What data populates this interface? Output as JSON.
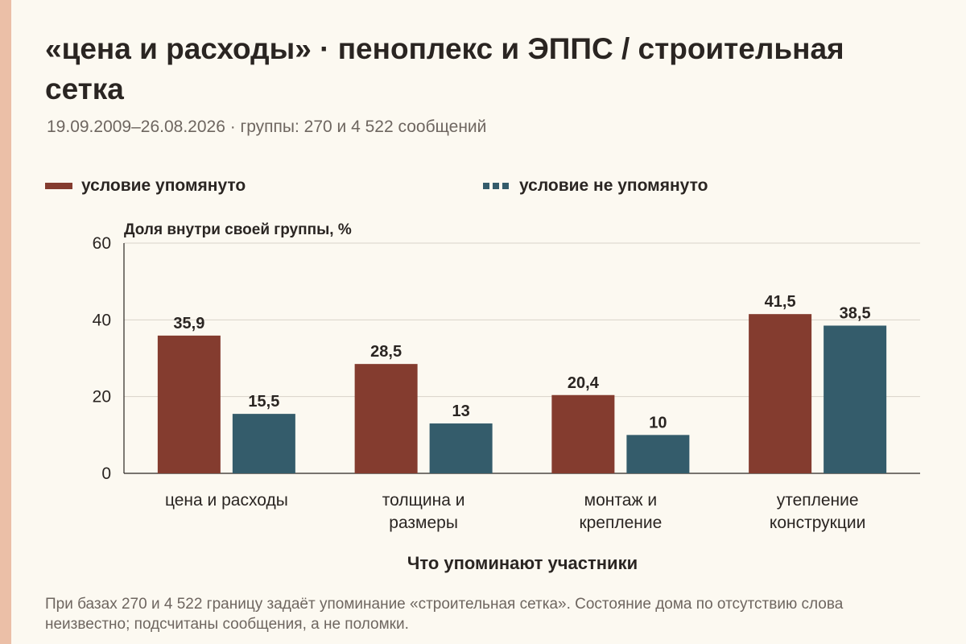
{
  "header": {
    "title": "«цена и расходы» · пеноплекс и ЭППС / строительная сетка",
    "subtitle": "19.09.2009–26.08.2026 · группы: 270 и 4 522 сообщений"
  },
  "legend": {
    "series_a": "условие упомянуто",
    "series_b": "условие не упомянуто"
  },
  "chart_data": {
    "type": "bar",
    "ylabel": "Доля внутри своей группы, %",
    "xlabel": "Что упоминают участники",
    "ylim": [
      0,
      60
    ],
    "yticks": [
      0,
      20,
      40,
      60
    ],
    "grid": true,
    "legend_position": "top",
    "categories": [
      [
        "цена и расходы"
      ],
      [
        "толщина и",
        "размеры"
      ],
      [
        "монтаж и",
        "крепление"
      ],
      [
        "утепление",
        "конструкции"
      ]
    ],
    "series": [
      {
        "name": "условие упомянуто",
        "color": "#843c2f",
        "values": [
          35.9,
          28.5,
          20.4,
          41.5
        ],
        "labels": [
          "35,9",
          "28,5",
          "20,4",
          "41,5"
        ]
      },
      {
        "name": "условие не упомянуто",
        "color": "#345c6b",
        "values": [
          15.5,
          13,
          10,
          38.5
        ],
        "labels": [
          "15,5",
          "13",
          "10",
          "38,5"
        ]
      }
    ]
  },
  "footnote": "При базах 270 и 4 522 границу задаёт упоминание «строительная сетка». Состояние дома по отсутствию слова неизвестно; подсчитаны сообщения, а не поломки."
}
